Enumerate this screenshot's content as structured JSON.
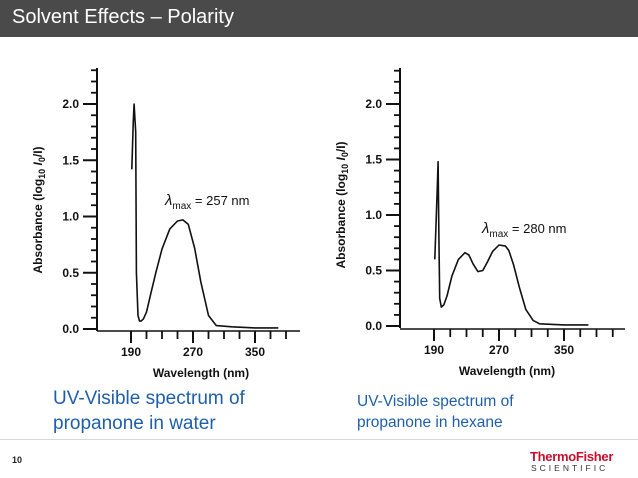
{
  "slide": {
    "title": "Solvent Effects – Polarity",
    "number": "10",
    "logo": {
      "main": "ThermoFisher",
      "sub": "SCIENTIFIC"
    }
  },
  "captions": [
    [
      "UV-Visible spectrum of",
      "propanone in water"
    ],
    [
      "UV-Visible spectrum of",
      "propanone in hexane"
    ]
  ],
  "chart_data": [
    {
      "type": "line",
      "xlabel": "Wavelength (nm)",
      "ylabel_prefix": "Absorbance  (log",
      "ylabel_sub": "10",
      "ylabel_mid": " I",
      "ylabel_sub2": "0",
      "ylabel_suffix": "/I)",
      "x_ticks": [
        "190",
        "270",
        "350"
      ],
      "y_ticks": [
        "0.0",
        "0.5",
        "1.0",
        "1.5",
        "2.0"
      ],
      "xlim": [
        170,
        390
      ],
      "ylim": [
        0,
        2.35
      ],
      "annotation": {
        "symbol": "λ",
        "sub": "max",
        "text": " = 257 nm"
      },
      "series": [
        {
          "x": [
            191,
            193,
            194,
            196,
            197,
            199,
            201,
            203,
            206,
            210,
            215,
            222,
            230,
            240,
            250,
            257,
            264,
            272,
            280,
            290,
            300,
            320,
            350,
            380
          ],
          "y": [
            1.42,
            1.85,
            2.0,
            1.75,
            0.5,
            0.12,
            0.07,
            0.07,
            0.09,
            0.15,
            0.3,
            0.5,
            0.71,
            0.89,
            0.96,
            0.97,
            0.93,
            0.72,
            0.42,
            0.12,
            0.03,
            0.02,
            0.01,
            0.01
          ]
        }
      ]
    },
    {
      "type": "line",
      "xlabel": "Wavelength (nm)",
      "ylabel_prefix": "Absorbance  (log",
      "ylabel_sub": "10",
      "ylabel_mid": " I",
      "ylabel_sub2": "0",
      "ylabel_suffix": "/I)",
      "x_ticks": [
        "190",
        "270",
        "350"
      ],
      "y_ticks": [
        "0.0",
        "0.5",
        "1.0",
        "1.5",
        "2.0"
      ],
      "xlim": [
        170,
        390
      ],
      "ylim": [
        0,
        2.35
      ],
      "annotation": {
        "symbol": "λ",
        "sub": "max",
        "text": " = 280 nm"
      },
      "series": [
        {
          "x": [
            191,
            194,
            195,
            196,
            197,
            199,
            202,
            206,
            212,
            220,
            228,
            233,
            238,
            244,
            250,
            256,
            262,
            270,
            278,
            282,
            288,
            295,
            303,
            312,
            320,
            350,
            380
          ],
          "y": [
            0.6,
            1.25,
            1.48,
            0.8,
            0.25,
            0.17,
            0.19,
            0.27,
            0.45,
            0.6,
            0.66,
            0.64,
            0.56,
            0.49,
            0.5,
            0.58,
            0.67,
            0.73,
            0.72,
            0.68,
            0.55,
            0.35,
            0.15,
            0.05,
            0.02,
            0.01,
            0.01
          ]
        }
      ]
    }
  ]
}
